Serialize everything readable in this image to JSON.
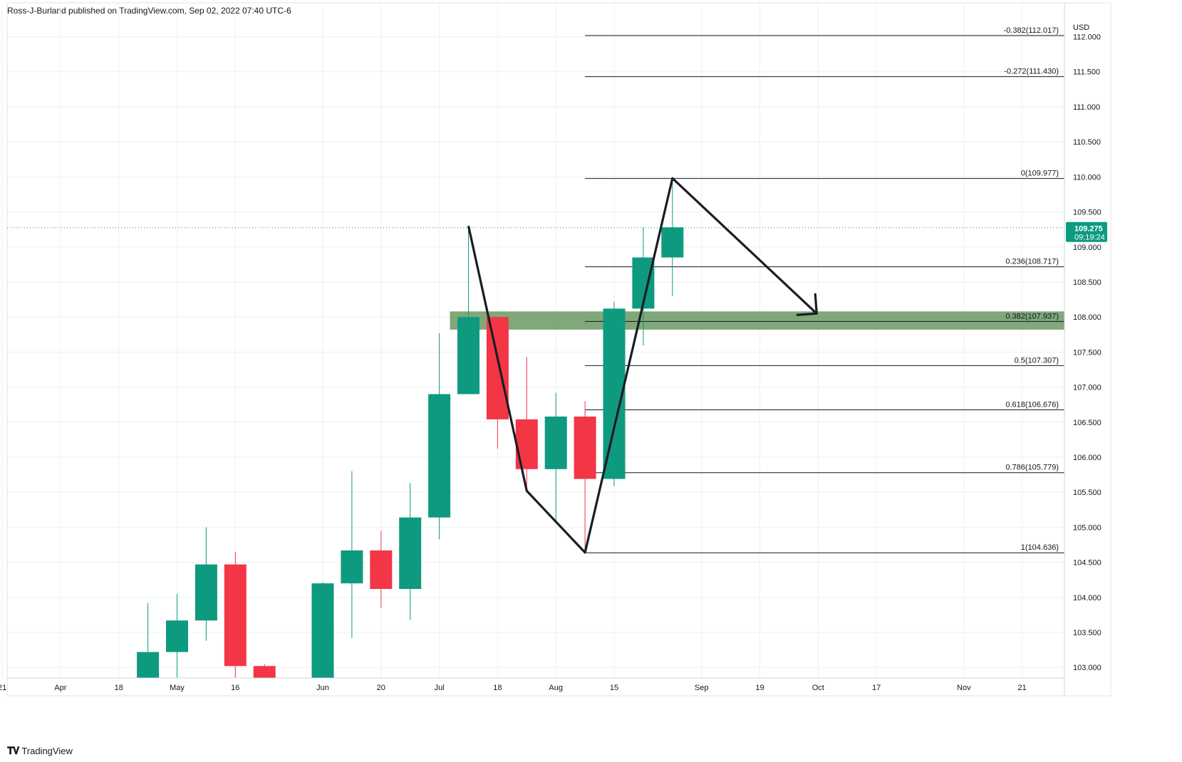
{
  "header": {
    "attribution": "Ross-J-Burland published on TradingView.com, Sep 02, 2022 07:40 UTC-6"
  },
  "footer": {
    "brand": "TradingView",
    "logo_icon": "tradingview-logo-icon"
  },
  "colors": {
    "up": "#0e9a7f",
    "down": "#f23645",
    "zone": "#5c8f55",
    "pattern": "#1a1d24",
    "grid": "#eef0f3"
  },
  "chart_data": {
    "type": "candlestick",
    "currency": "USD",
    "ylim": [
      102.85,
      112.3
    ],
    "y_ticks": [
      "103.000",
      "103.500",
      "104.000",
      "104.500",
      "105.000",
      "105.500",
      "106.000",
      "106.500",
      "107.000",
      "107.500",
      "108.000",
      "108.500",
      "109.000",
      "109.500",
      "110.000",
      "110.500",
      "111.000",
      "111.500",
      "112.000"
    ],
    "x_ticks": [
      {
        "label": "21",
        "w": -1
      },
      {
        "label": "Apr",
        "w": 1
      },
      {
        "label": "18",
        "w": 3
      },
      {
        "label": "May",
        "w": 5
      },
      {
        "label": "16",
        "w": 7
      },
      {
        "label": "Jun",
        "w": 10
      },
      {
        "label": "20",
        "w": 12
      },
      {
        "label": "Jul",
        "w": 14
      },
      {
        "label": "18",
        "w": 16
      },
      {
        "label": "Aug",
        "w": 18
      },
      {
        "label": "15",
        "w": 20
      },
      {
        "label": "Sep",
        "w": 23
      },
      {
        "label": "19",
        "w": 25
      },
      {
        "label": "Oct",
        "w": 27
      },
      {
        "label": "17",
        "w": 29
      },
      {
        "label": "Nov",
        "w": 32
      },
      {
        "label": "21",
        "w": 34
      }
    ],
    "candles": [
      {
        "w": 4,
        "o": 102.85,
        "h": 103.92,
        "l": 102.85,
        "c": 103.22
      },
      {
        "w": 5,
        "o": 103.22,
        "h": 104.05,
        "l": 102.85,
        "c": 103.67
      },
      {
        "w": 6,
        "o": 103.67,
        "h": 105.0,
        "l": 103.38,
        "c": 104.47
      },
      {
        "w": 7,
        "o": 104.47,
        "h": 104.65,
        "l": 102.85,
        "c": 103.02
      },
      {
        "w": 8,
        "o": 103.02,
        "h": 103.05,
        "l": 102.85,
        "c": 102.85
      },
      {
        "w": 10,
        "o": 102.85,
        "h": 104.22,
        "l": 102.85,
        "c": 104.2
      },
      {
        "w": 11,
        "o": 104.2,
        "h": 105.8,
        "l": 103.42,
        "c": 104.67
      },
      {
        "w": 12,
        "o": 104.67,
        "h": 104.95,
        "l": 103.85,
        "c": 104.12
      },
      {
        "w": 13,
        "o": 104.12,
        "h": 105.63,
        "l": 103.68,
        "c": 105.14
      },
      {
        "w": 14,
        "o": 105.14,
        "h": 107.77,
        "l": 104.83,
        "c": 106.9
      },
      {
        "w": 15,
        "o": 106.9,
        "h": 109.28,
        "l": 106.9,
        "c": 108.0
      },
      {
        "w": 16,
        "o": 108.0,
        "h": 108.0,
        "l": 106.12,
        "c": 106.54
      },
      {
        "w": 17,
        "o": 106.54,
        "h": 107.43,
        "l": 105.52,
        "c": 105.83
      },
      {
        "w": 18,
        "o": 105.83,
        "h": 106.92,
        "l": 105.06,
        "c": 106.58
      },
      {
        "w": 19,
        "o": 106.58,
        "h": 106.8,
        "l": 104.64,
        "c": 105.69
      },
      {
        "w": 20,
        "o": 105.69,
        "h": 108.22,
        "l": 105.59,
        "c": 108.12
      },
      {
        "w": 21,
        "o": 108.12,
        "h": 109.28,
        "l": 107.59,
        "c": 108.85
      },
      {
        "w": 22,
        "o": 108.85,
        "h": 109.98,
        "l": 108.3,
        "c": 109.28
      }
    ],
    "last_price": {
      "value": "109.275",
      "countdown": "09:19:24",
      "num": 109.275
    },
    "fib_anchor_week": 20,
    "fib_levels": [
      {
        "label": "-0.382(112.017)",
        "value": 112.017
      },
      {
        "label": "-0.272(111.430)",
        "value": 111.43
      },
      {
        "label": "0(109.977)",
        "value": 109.977
      },
      {
        "label": "0.236(108.717)",
        "value": 108.717
      },
      {
        "label": "0.382(107.937)",
        "value": 107.937
      },
      {
        "label": "0.5(107.307)",
        "value": 107.307
      },
      {
        "label": "0.618(106.676)",
        "value": 106.676
      },
      {
        "label": "0.786(105.779)",
        "value": 105.779
      },
      {
        "label": "1(104.636)",
        "value": 104.636
      }
    ],
    "zone": {
      "from_week": 14.95,
      "y_top": 108.08,
      "y_bottom": 107.82
    },
    "pattern_line": [
      {
        "w": 15.0,
        "y": 109.3
      },
      {
        "w": 17.0,
        "y": 105.52
      },
      {
        "w": 19.0,
        "y": 104.64
      },
      {
        "w": 22.0,
        "y": 109.98
      },
      {
        "w": 26.95,
        "y": 108.05
      }
    ],
    "arrow_tip": {
      "w": 26.95,
      "y": 108.05
    }
  }
}
